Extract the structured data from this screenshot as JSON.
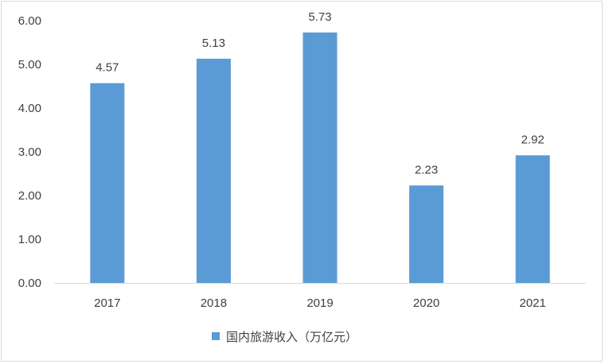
{
  "chart_data": {
    "type": "bar",
    "categories": [
      "2017",
      "2018",
      "2019",
      "2020",
      "2021"
    ],
    "series": [
      {
        "name": "国内旅游收入（万亿元）",
        "values": [
          4.57,
          5.13,
          5.73,
          2.23,
          2.92
        ]
      }
    ],
    "data_labels": [
      "4.57",
      "5.13",
      "5.73",
      "2.23",
      "2.92"
    ],
    "y_ticks": [
      "0.00",
      "1.00",
      "2.00",
      "3.00",
      "4.00",
      "5.00",
      "6.00"
    ],
    "ylim": [
      0,
      6
    ],
    "title": "",
    "xlabel": "",
    "ylabel": "",
    "grid": false,
    "legend_position": "bottom",
    "colors": {
      "bar": "#5b9bd5",
      "axis": "#d9d9d9",
      "text": "#404040"
    }
  }
}
